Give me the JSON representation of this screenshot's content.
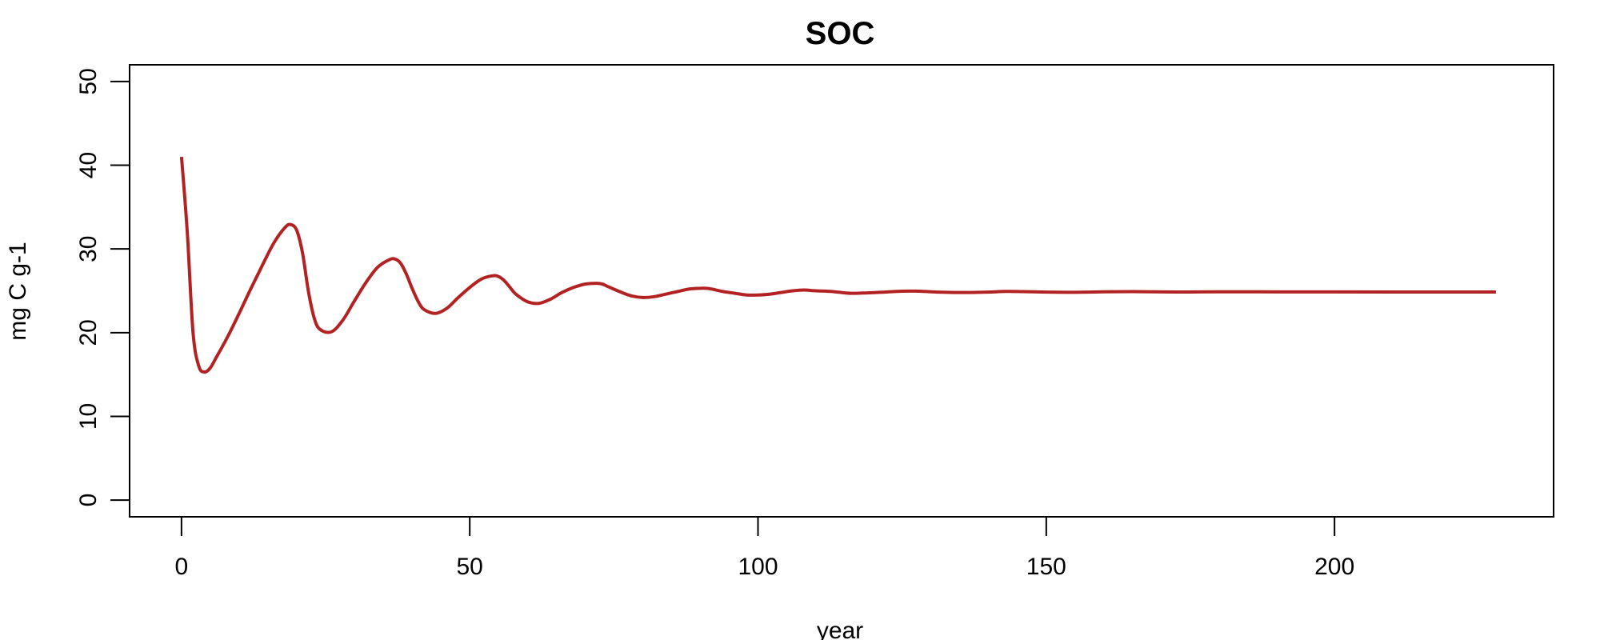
{
  "chart_data": {
    "type": "line",
    "title": "SOC",
    "xlabel": "year",
    "ylabel": "mg C g-1",
    "xlim": [
      -9,
      238
    ],
    "ylim": [
      -2,
      52
    ],
    "xticks": [
      0,
      50,
      100,
      150,
      200
    ],
    "yticks": [
      0,
      10,
      20,
      30,
      40,
      50
    ],
    "grid": false,
    "series": [
      {
        "color": "#B22222",
        "x": [
          0,
          1,
          2,
          3,
          4,
          5,
          6,
          8,
          10,
          12,
          14,
          16,
          18,
          19,
          20,
          21,
          22,
          23,
          24,
          26,
          28,
          30,
          32,
          34,
          36,
          37,
          38,
          39,
          40,
          41,
          42,
          44,
          46,
          48,
          50,
          52,
          54,
          55,
          56,
          57,
          58,
          60,
          62,
          64,
          66,
          68,
          70,
          72,
          73,
          74,
          76,
          78,
          80,
          82,
          84,
          86,
          88,
          90,
          91,
          92,
          94,
          96,
          98,
          100,
          102,
          104,
          106,
          108,
          110,
          113,
          116,
          119,
          122,
          125,
          128,
          131,
          134,
          137,
          140,
          143,
          146,
          150,
          155,
          160,
          165,
          170,
          175,
          180,
          190,
          200,
          210,
          220,
          228
        ],
        "y": [
          41.0,
          32.0,
          20.0,
          16.0,
          15.3,
          15.8,
          17.0,
          19.5,
          22.3,
          25.2,
          28.0,
          30.7,
          32.6,
          32.9,
          32.2,
          29.5,
          25.0,
          21.8,
          20.4,
          20.1,
          21.5,
          23.8,
          26.0,
          27.8,
          28.7,
          28.8,
          28.3,
          27.0,
          25.3,
          23.8,
          22.8,
          22.3,
          22.9,
          24.2,
          25.4,
          26.4,
          26.8,
          26.7,
          26.2,
          25.4,
          24.6,
          23.7,
          23.5,
          24.0,
          24.8,
          25.4,
          25.8,
          25.9,
          25.8,
          25.5,
          24.9,
          24.4,
          24.2,
          24.3,
          24.6,
          24.9,
          25.2,
          25.3,
          25.3,
          25.2,
          24.9,
          24.7,
          24.5,
          24.5,
          24.6,
          24.8,
          25.0,
          25.1,
          25.0,
          24.9,
          24.7,
          24.75,
          24.85,
          24.95,
          24.95,
          24.85,
          24.8,
          24.8,
          24.85,
          24.92,
          24.9,
          24.85,
          24.82,
          24.88,
          24.9,
          24.87,
          24.86,
          24.88,
          24.87,
          24.87,
          24.86,
          24.86,
          24.86
        ]
      }
    ]
  }
}
